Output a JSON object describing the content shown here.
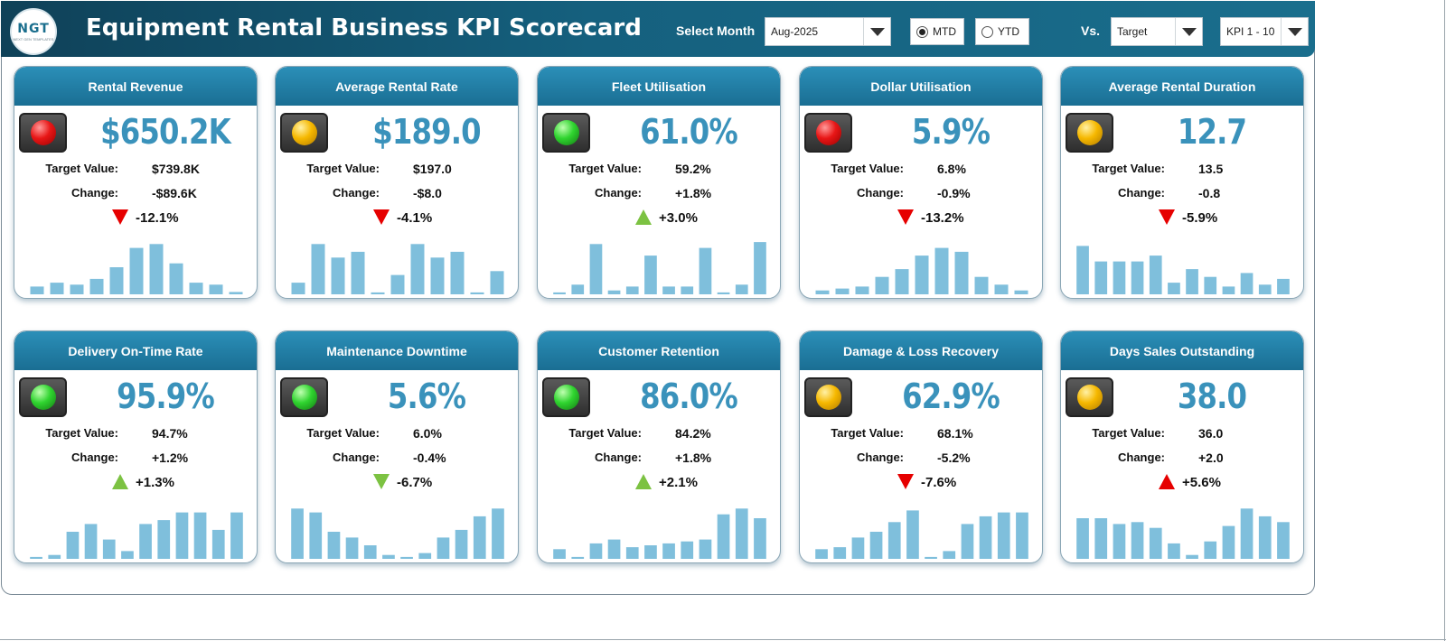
{
  "header": {
    "logo_text": "NGT",
    "logo_subtext": "NEXT GEN TEMPLATES",
    "title": "Equipment Rental Business KPI Scorecard",
    "select_month_label": "Select Month",
    "month_value": "Aug-2025",
    "mtd_label": "MTD",
    "ytd_label": "YTD",
    "period_selected": "MTD",
    "vs_label": "Vs.",
    "compare_value": "Target",
    "kpi_range_value": "KPI 1 - 10"
  },
  "colors": {
    "header": "#15607e",
    "card_header": "#2b8fb8",
    "value": "#3a92bb",
    "bar": "#7fbfdc",
    "red": "#e60000",
    "green": "#7cc242",
    "amber": "#f6b800"
  },
  "target_label": "Target Value:",
  "change_label": "Change:",
  "cards": [
    {
      "title": "Rental Revenue",
      "value": "$650.2K",
      "target": "$739.8K",
      "change": "-$89.6K",
      "pct": "-12.1%",
      "status": "red",
      "arrow": "down-red",
      "bars": [
        2,
        3,
        2.5,
        4,
        7,
        12,
        13,
        8,
        3,
        2.5,
        0.6
      ]
    },
    {
      "title": "Average Rental Rate",
      "value": "$189.0",
      "target": "$197.0",
      "change": "-$8.0",
      "pct": "-4.1%",
      "status": "amber",
      "arrow": "down-red",
      "bars": [
        3,
        13,
        9.5,
        11,
        0.5,
        5,
        13,
        9.5,
        11,
        0.5,
        6
      ]
    },
    {
      "title": "Fleet Utilisation",
      "value": "61.0%",
      "target": "59.2%",
      "change": "+1.8%",
      "pct": "+3.0%",
      "status": "green",
      "arrow": "up-green",
      "bars": [
        0.5,
        2.5,
        13,
        1,
        2,
        10,
        2,
        2,
        12,
        0.5,
        2.5,
        13.5
      ]
    },
    {
      "title": "Dollar Utilisation",
      "value": "5.9%",
      "target": "6.8%",
      "change": "-0.9%",
      "pct": "-13.2%",
      "status": "red",
      "arrow": "down-red",
      "bars": [
        1,
        1.5,
        2,
        4.5,
        6.5,
        10,
        12,
        11,
        4.5,
        2.5,
        1
      ]
    },
    {
      "title": "Average Rental Duration",
      "value": "12.7",
      "target": "13.5",
      "change": "-0.8",
      "pct": "-5.9%",
      "status": "amber",
      "arrow": "down-red",
      "bars": [
        12.5,
        8.5,
        8.5,
        8.5,
        10,
        3,
        6.5,
        4.5,
        2,
        5.5,
        2.5,
        4
      ]
    },
    {
      "title": "Delivery On-Time Rate",
      "value": "95.9%",
      "target": "94.7%",
      "change": "+1.2%",
      "pct": "+1.3%",
      "status": "green",
      "arrow": "up-green",
      "bars": [
        0.5,
        1,
        7,
        9,
        5,
        2,
        9,
        10,
        12,
        12,
        7.5,
        12
      ]
    },
    {
      "title": "Maintenance Downtime",
      "value": "5.6%",
      "target": "6.0%",
      "change": "-0.4%",
      "pct": "-6.7%",
      "status": "green",
      "arrow": "down-green",
      "bars": [
        13,
        12,
        7,
        5.5,
        3.5,
        1,
        0.5,
        1.5,
        5.5,
        7.5,
        11,
        13
      ]
    },
    {
      "title": "Customer Retention",
      "value": "86.0%",
      "target": "84.2%",
      "change": "+1.8%",
      "pct": "+2.1%",
      "status": "green",
      "arrow": "up-green",
      "bars": [
        2.5,
        0.5,
        4,
        5,
        3,
        3.5,
        4,
        4.5,
        5,
        11.5,
        13,
        10.5
      ]
    },
    {
      "title": "Damage & Loss Recovery",
      "value": "62.9%",
      "target": "68.1%",
      "change": "-5.2%",
      "pct": "-7.6%",
      "status": "amber",
      "arrow": "down-red",
      "bars": [
        2.5,
        3,
        5.5,
        7,
        9.5,
        12.5,
        0.5,
        2,
        9,
        11,
        12,
        12
      ]
    },
    {
      "title": "Days Sales Outstanding",
      "value": "38.0",
      "target": "36.0",
      "change": "+2.0",
      "pct": "+5.6%",
      "status": "amber",
      "arrow": "up-red",
      "bars": [
        10.5,
        10.5,
        9,
        9.5,
        8,
        4,
        1,
        4.5,
        8.5,
        13,
        11,
        9.5
      ]
    }
  ]
}
